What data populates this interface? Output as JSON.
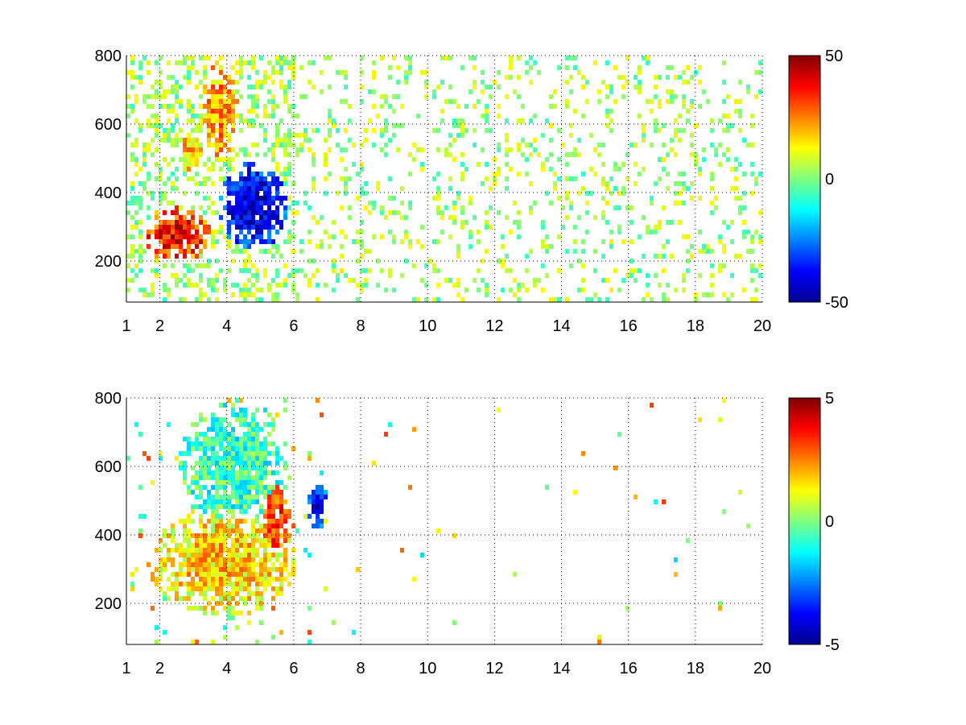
{
  "figure": {
    "background": "#ffffff"
  },
  "chart_data": [
    {
      "type": "heatmap",
      "title": "",
      "xlabel": "",
      "ylabel": "",
      "xlim": [
        1,
        20
      ],
      "ylim": [
        80,
        800
      ],
      "xticks": [
        1,
        2,
        4,
        6,
        8,
        10,
        12,
        14,
        16,
        18,
        20
      ],
      "yticks": [
        200,
        400,
        600,
        800
      ],
      "grid": true,
      "colormap": "jet",
      "colorbar": {
        "range": [
          -50,
          50
        ],
        "ticks": [
          -50,
          0,
          50
        ],
        "tick_labels": [
          "-50",
          "0",
          "50"
        ]
      },
      "features": [
        {
          "region": "low-frequency ridge",
          "x_range": [
            1.5,
            3.5
          ],
          "y_range": [
            200,
            350
          ],
          "value": 40
        },
        {
          "region": "upper-left blob",
          "x_range": [
            2.5,
            3.3
          ],
          "y_range": [
            470,
            580
          ],
          "value": 20
        },
        {
          "region": "upper band",
          "x_range": [
            3.3,
            4.3
          ],
          "y_range": [
            500,
            780
          ],
          "value": 25
        },
        {
          "region": "deep trough",
          "x_range": [
            3.8,
            5.8
          ],
          "y_range": [
            240,
            480
          ],
          "value": -45
        },
        {
          "region": "scattered noise",
          "x_range": [
            6,
            20
          ],
          "y_range": [
            80,
            800
          ],
          "value": 3
        }
      ]
    },
    {
      "type": "heatmap",
      "title": "",
      "xlabel": "",
      "ylabel": "",
      "xlim": [
        1,
        20
      ],
      "ylim": [
        80,
        800
      ],
      "xticks": [
        1,
        2,
        4,
        6,
        8,
        10,
        12,
        14,
        16,
        18,
        20
      ],
      "yticks": [
        200,
        400,
        600,
        800
      ],
      "grid": true,
      "colormap": "jet",
      "colorbar": {
        "range": [
          -5,
          5
        ],
        "ticks": [
          -5,
          0,
          5
        ],
        "tick_labels": [
          "-5",
          "0",
          "5"
        ]
      },
      "features": [
        {
          "region": "ridge band",
          "x_range": [
            1.8,
            5.9
          ],
          "y_range": [
            170,
            470
          ],
          "value": 1.8
        },
        {
          "region": "upper plume",
          "x_range": [
            2.7,
            5.8
          ],
          "y_range": [
            420,
            780
          ],
          "value": -0.8
        },
        {
          "region": "negative cluster",
          "x_range": [
            6.4,
            7.0
          ],
          "y_range": [
            420,
            560
          ],
          "value": -4.0
        },
        {
          "region": "positive edge",
          "x_range": [
            5.0,
            5.9
          ],
          "y_range": [
            330,
            560
          ],
          "value": 3.5
        },
        {
          "region": "sparse points",
          "x_range": [
            7.5,
            12.5
          ],
          "y_range": [
            80,
            800
          ],
          "value": 1.0
        }
      ]
    }
  ]
}
